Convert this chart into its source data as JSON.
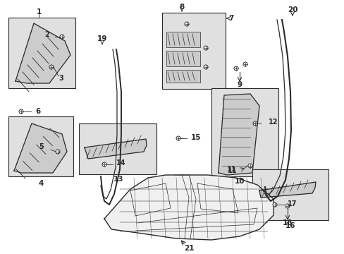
{
  "bg_color": "#ffffff",
  "line_color": "#2a2a2a",
  "box_bg": "#e0e0e0",
  "fig_w": 4.89,
  "fig_h": 3.6,
  "dpi": 100
}
